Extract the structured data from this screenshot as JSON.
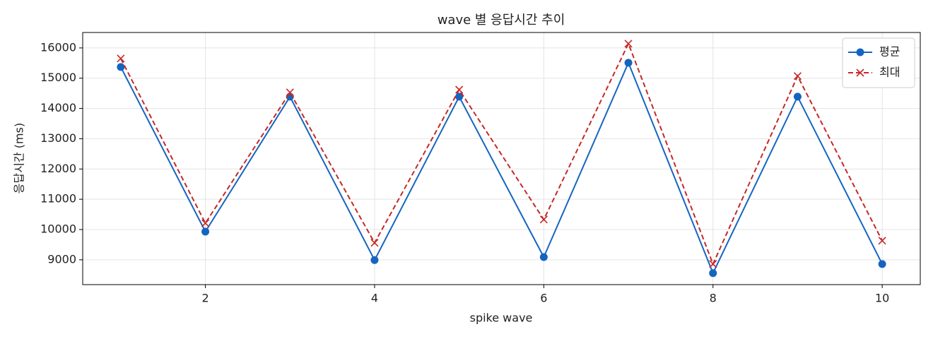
{
  "chart_data": {
    "type": "line",
    "title": "wave 별 응답시간 추이",
    "x_label": "spike wave",
    "y_label": "응답시간 (ms)",
    "x": [
      1,
      2,
      3,
      4,
      5,
      6,
      7,
      8,
      9,
      10
    ],
    "series": [
      {
        "name": "평균",
        "color": "#1565c0",
        "linestyle": "solid",
        "marker": "o",
        "values": [
          15370,
          9930,
          14390,
          8990,
          14390,
          9090,
          15510,
          8560,
          14390,
          8860
        ]
      },
      {
        "name": "최대",
        "color": "#c62828",
        "linestyle": "dashed",
        "marker": "x",
        "values": [
          15650,
          10210,
          14530,
          9560,
          14620,
          10330,
          16140,
          8860,
          15070,
          9630
        ]
      }
    ],
    "xlim": [
      0.55,
      10.45
    ],
    "xticks": [
      2,
      4,
      6,
      8,
      10
    ],
    "ylim": [
      8180,
      16510
    ],
    "yticks": [
      9000,
      10000,
      11000,
      12000,
      13000,
      14000,
      15000,
      16000
    ],
    "grid": true,
    "legend": "upper right"
  }
}
